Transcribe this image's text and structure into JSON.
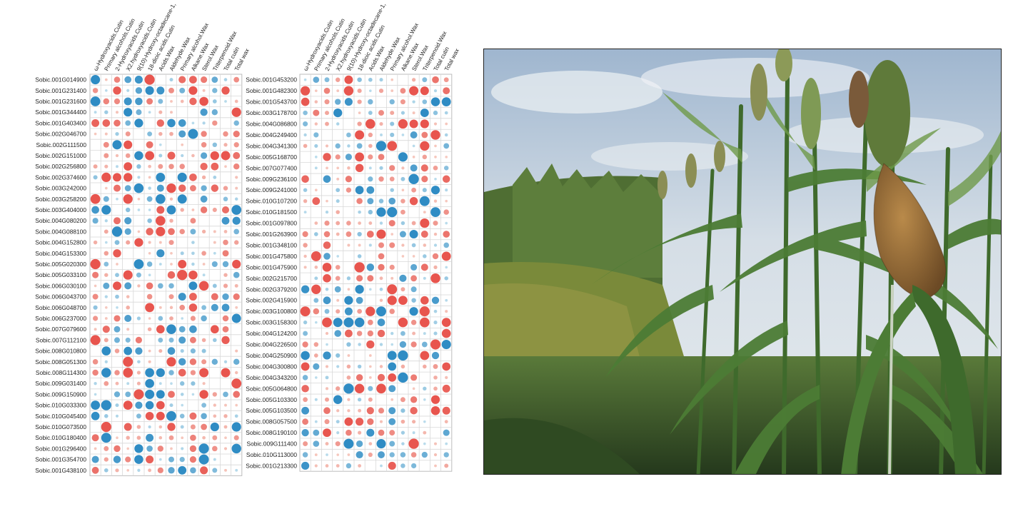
{
  "chart_data": [
    {
      "type": "heatmap",
      "columns": [
        "ω-Hydroxyacids.Cutin",
        "Primary alcohols.Cutin",
        "2-Hydroxyacids.Cutin",
        "X2.hydroxyacids.Cutin",
        "9(10)-Hydroxy-octadecane-1,",
        "18-dioic acids.Cutin",
        "Acids.Wax",
        "Aldehyde.Wax",
        "Primary alcohol.Wax",
        "Alkane.Wax",
        "Sterol.Wax",
        "Triterpenoid.Wax",
        "Total cutin",
        "Total wax"
      ],
      "rows": [
        "Sobic.001G014900",
        "Sobic.001G231400",
        "Sobic.001G231600",
        "Sobic.001G344400",
        "Sobic.001G403400",
        "Sobic.002G046700",
        "Sobic.002G111500",
        "Sobic.002G151000",
        "Sobic.002G256800",
        "Sobic.002G374600",
        "Sobic.003G242000",
        "Sobic.003G258200",
        "Sobic.003G404000",
        "Sobic.004G080200",
        "Sobic.004G088100",
        "Sobic.004G152800",
        "Sobic.004G153300",
        "Sobic.005G020300",
        "Sobic.005G033100",
        "Sobic.006G030100",
        "Sobic.006G043700",
        "Sobic.006G048700",
        "Sobic.006G237000",
        "Sobic.007G079600",
        "Sobic.007G112100",
        "Sobic.008G010800",
        "Sobic.008G051300",
        "Sobic.008G114300",
        "Sobic.009G031400",
        "Sobic.009G150900",
        "Sobic.010G033300",
        "Sobic.010G045400",
        "Sobic.010G073500",
        "Sobic.010G180400",
        "Sobic.001G296400",
        "Sobic.001G354700",
        "Sobic.001G438100"
      ]
    },
    {
      "type": "heatmap",
      "columns": [
        "ω-Hydroxyacids.Cutin",
        "Primary alcohols.Cutin",
        "2-Hydroxyacids.Cutin",
        "X2.hydroxyacids.Cutin",
        "9(10)-Hydroxy-octadecane-1,",
        "18-dioic acids.Cutin",
        "Acids.Wax",
        "Aldehyde.Wax",
        "Primary alcohol.Wax",
        "Alkane.Wax",
        "Sterol.Wax",
        "Triterpenoid.Wax",
        "Total cutin",
        "Total wax"
      ],
      "rows": [
        "Sobic.001G453200",
        "Sobic.001G482300",
        "Sobic.001G543700",
        "Sobic.003G178700",
        "Sobic.004G086800",
        "Sobic.004G249400",
        "Sobic.004G341300",
        "Sobic.005G168700",
        "Sobic.007G077400",
        "Sobic.009G236100",
        "Sobic.009G241000",
        "Sobic.010G107200",
        "Sobic.010G181500",
        "Sobic.001G097800",
        "Sobic.001G263900",
        "Sobic.001G348100",
        "Sobic.001G475800",
        "Sobic.001G475900",
        "Sobic.002G215700",
        "Sobic.002G379200",
        "Sobic.002G415900",
        "Sobic.003G100800",
        "Sobic.003G158300",
        "Sobic.004G124200",
        "Sobic.004G226500",
        "Sobic.004G250900",
        "Sobic.004G300800",
        "Sobic.004G343200",
        "Sobic.005G064800",
        "Sobic.005G103300",
        "Sobic.005G103500",
        "Sobic.008G057500",
        "Sobic.008G190100",
        "Sobic.009G111400",
        "Sobic.010G113000",
        "Sobic.001G213300"
      ]
    }
  ],
  "colors": {
    "positive": "#e8554e",
    "negative": "#2f8cc4",
    "grid": "#d8d8d8"
  }
}
